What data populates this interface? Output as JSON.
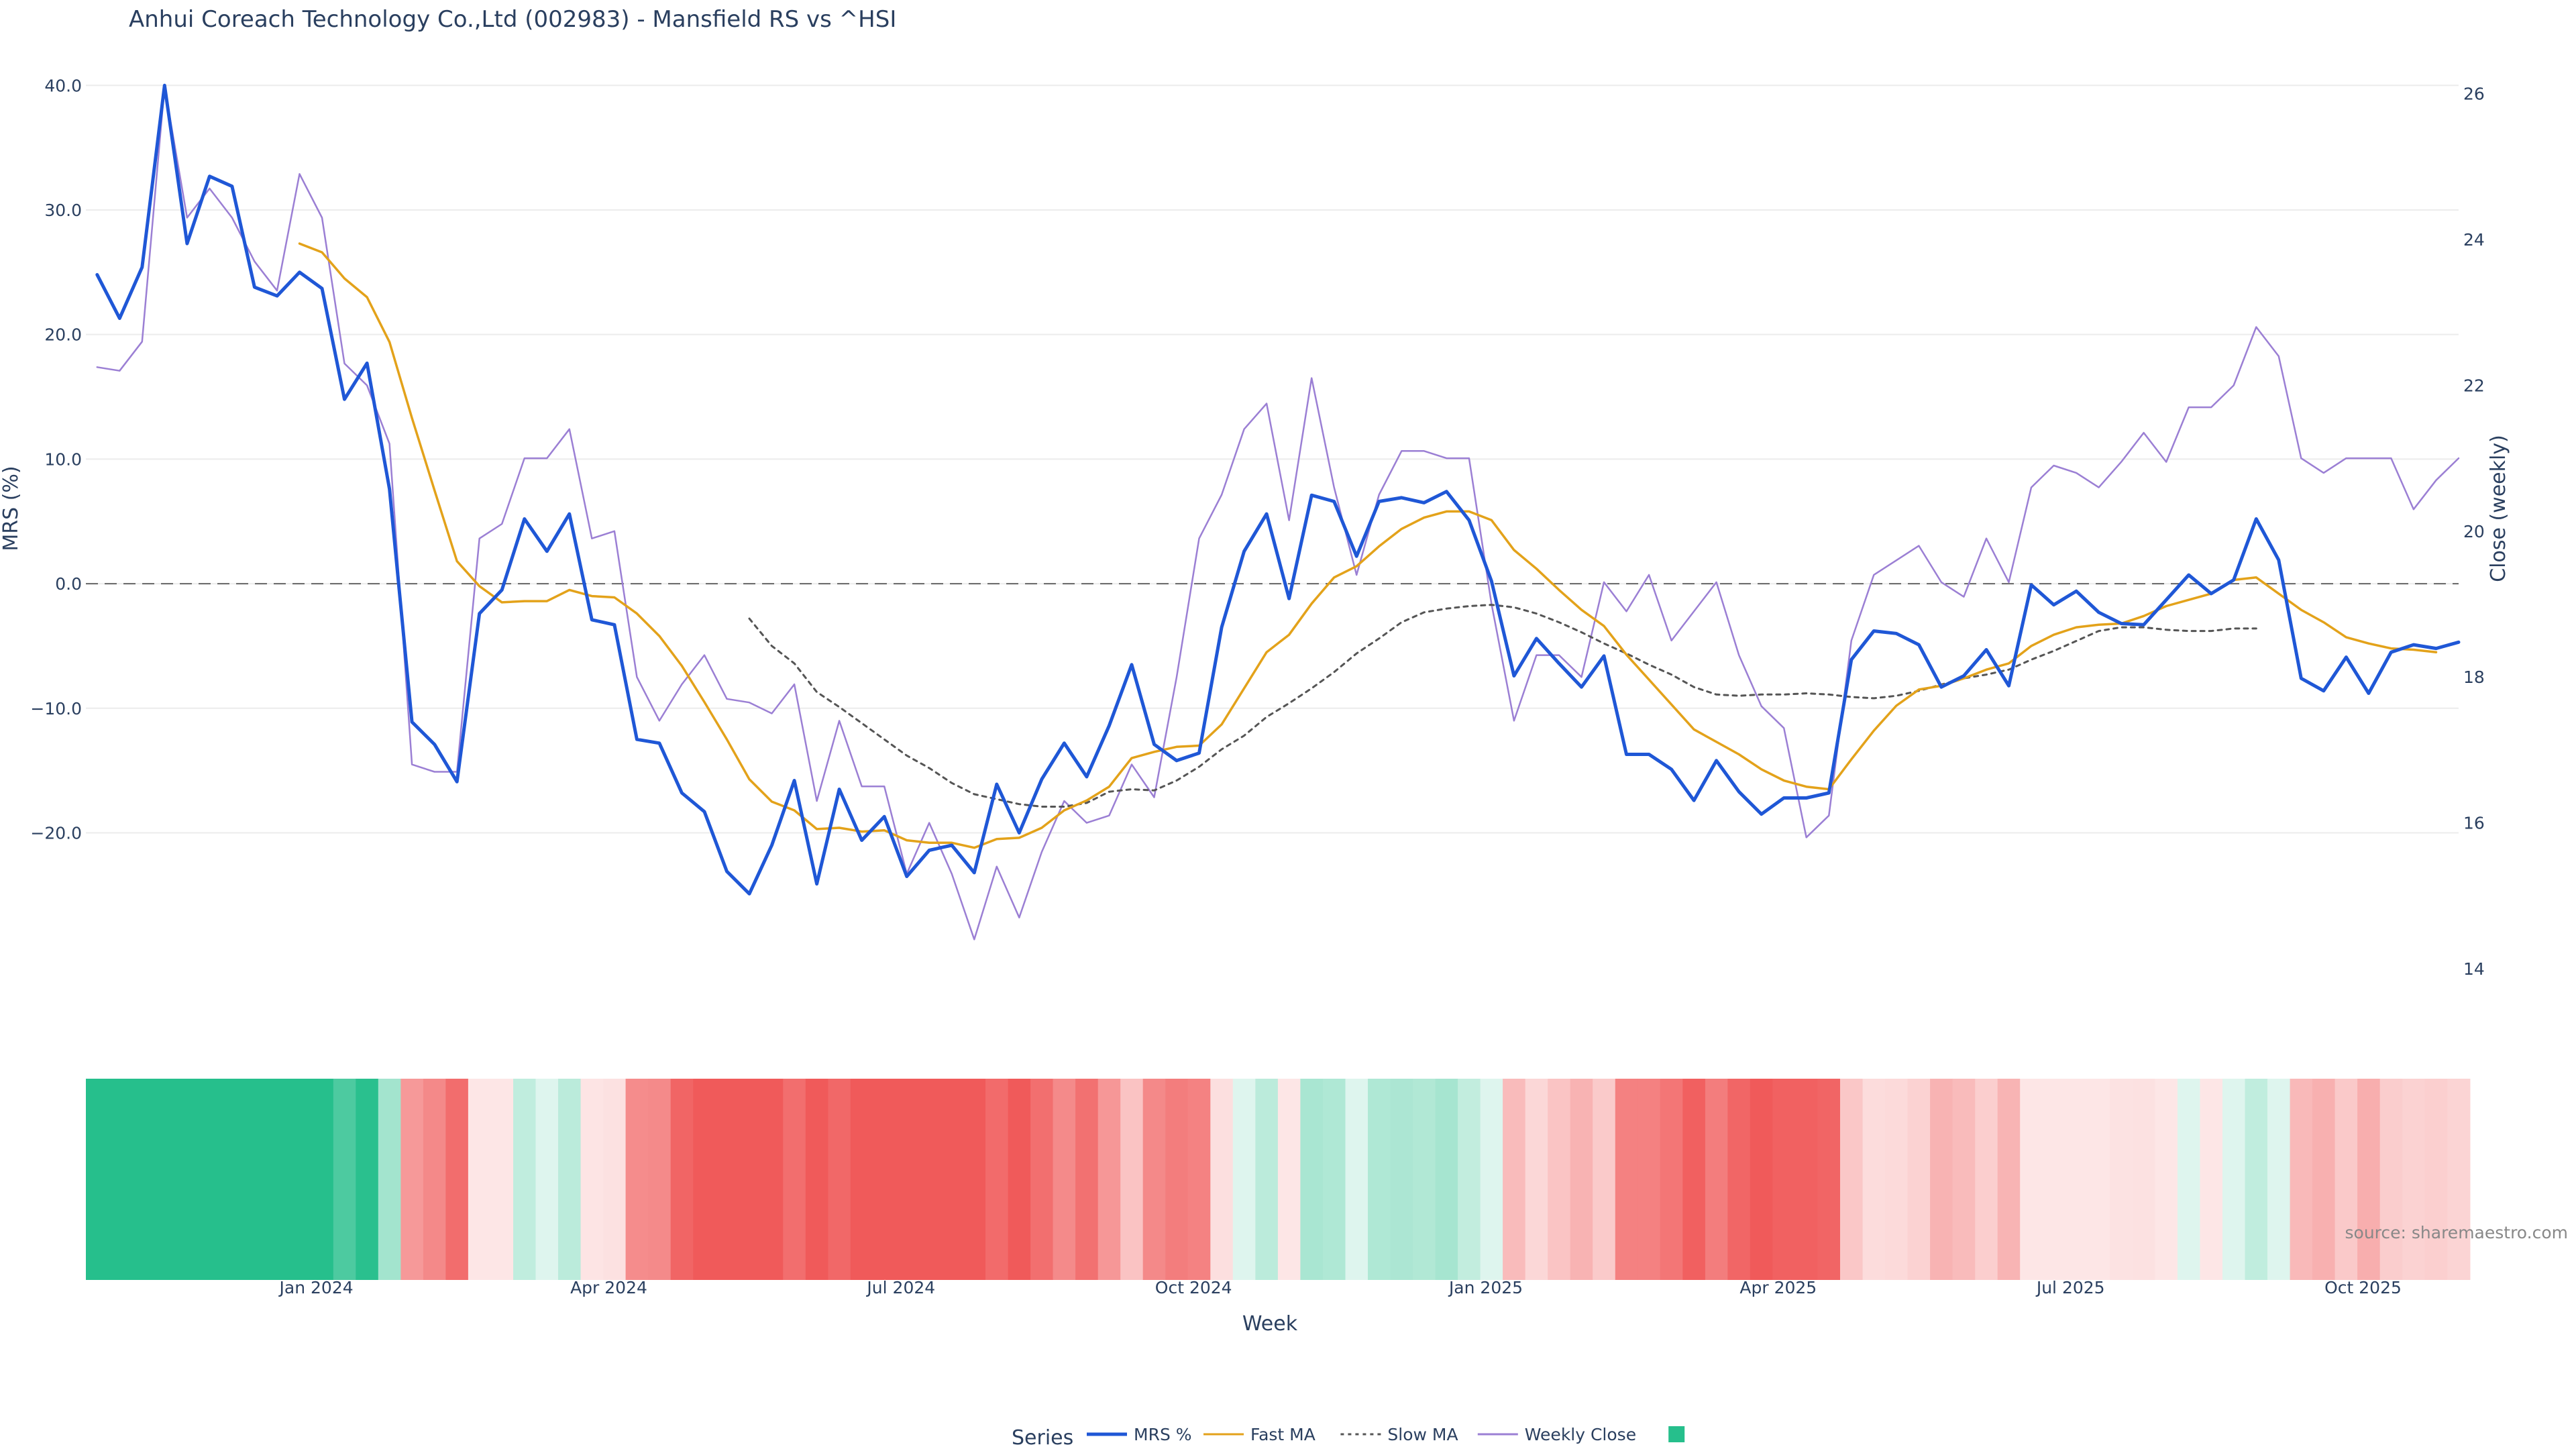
{
  "title": "Anhui Coreach Technology Co.,Ltd (002983) - Mansfield RS vs ^HSI",
  "source_note": "source: sharemaestro.com",
  "legend": {
    "title": "Series",
    "items": [
      {
        "label": "MRS %",
        "color": "#1f57d6",
        "dash": "solid"
      },
      {
        "label": "Fast MA",
        "color": "#e3a21a",
        "dash": "solid"
      },
      {
        "label": "Slow MA",
        "color": "#555555",
        "dash": "dot"
      },
      {
        "label": "Weekly Close",
        "color": "#9b7fd4",
        "dash": "solid"
      },
      {
        "label": "",
        "color": "#26bf8c",
        "dash": "swatch"
      }
    ]
  },
  "chart_data": {
    "type": "line",
    "x_axis": {
      "title": "Week",
      "ticks": [
        "Jan 2024",
        "Apr 2024",
        "Jul 2024",
        "Oct 2024",
        "Jan 2025",
        "Apr 2025",
        "Jul 2025",
        "Oct 2025"
      ],
      "tick_weeks": [
        9.75,
        22.75,
        35.75,
        48.75,
        61.75,
        74.75,
        87.75,
        100.75
      ],
      "first_week_label": "week index 0 ≈ 2023-10-30",
      "range_weeks": [
        -0.5,
        105
      ]
    },
    "y_axis_left": {
      "title": "MRS (%)",
      "ticks": [
        "40.0",
        "30.0",
        "20.0",
        "10.0",
        "0.0",
        "−10.0",
        "−20.0"
      ],
      "tick_values": [
        40,
        30,
        20,
        10,
        0,
        -10,
        -20
      ],
      "range": [
        -35,
        40.5
      ]
    },
    "y_axis_right": {
      "title": "Close (weekly)",
      "ticks": [
        "26",
        "24",
        "22",
        "20",
        "18",
        "16",
        "14"
      ],
      "tick_values": [
        26,
        24,
        22,
        20,
        18,
        16,
        14
      ],
      "range": [
        13.3,
        26.2
      ]
    },
    "zero_line": 0,
    "grid": true,
    "series": [
      {
        "name": "MRS %",
        "axis": "left",
        "color": "#1f57d6",
        "start_week": 0,
        "values": [
          24.8,
          21.3,
          25.4,
          40.0,
          27.3,
          32.7,
          31.9,
          23.8,
          23.1,
          25.0,
          23.7,
          14.8,
          17.7,
          7.6,
          -11.1,
          -12.9,
          -15.9,
          -2.4,
          -0.5,
          5.2,
          2.6,
          5.6,
          -2.9,
          -3.3,
          -12.5,
          -12.8,
          -16.8,
          -18.3,
          -23.1,
          -24.9,
          -21.0,
          -15.8,
          -24.1,
          -16.5,
          -20.6,
          -18.7,
          -23.5,
          -21.4,
          -21.0,
          -23.2,
          -16.1,
          -20.0,
          -15.7,
          -12.8,
          -15.5,
          -11.4,
          -6.5,
          -12.9,
          -14.2,
          -13.6,
          -3.5,
          2.6,
          5.6,
          -1.2,
          7.1,
          6.6,
          2.2,
          6.6,
          6.9,
          6.5,
          7.4,
          5.1,
          0.2,
          -7.4,
          -4.4,
          -6.4,
          -8.3,
          -5.8,
          -13.7,
          -13.7,
          -14.9,
          -17.4,
          -14.2,
          -16.7,
          -18.5,
          -17.2,
          -17.2,
          -16.8,
          -6.1,
          -3.8,
          -4.0,
          -4.9,
          -8.3,
          -7.4,
          -5.3,
          -8.2,
          -0.1,
          -1.7,
          -0.6,
          -2.3,
          -3.2,
          -3.3,
          -1.3,
          0.7,
          -0.8,
          0.3,
          5.2,
          1.9,
          -7.6,
          -8.6,
          -5.9,
          -8.8,
          -5.5,
          -4.9,
          -5.2,
          -4.7
        ]
      },
      {
        "name": "Fast MA",
        "axis": "left",
        "color": "#e3a21a",
        "start_week": 9,
        "values": [
          27.3,
          26.6,
          24.5,
          23.0,
          19.4,
          13.3,
          7.5,
          1.8,
          -0.2,
          -1.5,
          -1.4,
          -1.4,
          -0.5,
          -1.0,
          -1.1,
          -2.4,
          -4.2,
          -6.6,
          -9.5,
          -12.5,
          -15.7,
          -17.5,
          -18.2,
          -19.7,
          -19.6,
          -19.9,
          -19.8,
          -20.6,
          -20.8,
          -20.8,
          -21.2,
          -20.5,
          -20.4,
          -19.6,
          -18.2,
          -17.4,
          -16.3,
          -14.0,
          -13.5,
          -13.1,
          -13.0,
          -11.3,
          -8.4,
          -5.5,
          -4.1,
          -1.6,
          0.5,
          1.4,
          3.0,
          4.4,
          5.3,
          5.8,
          5.8,
          5.1,
          2.7,
          1.2,
          -0.5,
          -2.1,
          -3.4,
          -5.7,
          -7.7,
          -9.7,
          -11.7,
          -12.7,
          -13.7,
          -14.9,
          -15.8,
          -16.3,
          -16.5,
          -14.1,
          -11.8,
          -9.8,
          -8.5,
          -8.2,
          -7.6,
          -6.9,
          -6.4,
          -5.0,
          -4.1,
          -3.5,
          -3.3,
          -3.2,
          -2.6,
          -1.8,
          -1.3,
          -0.8,
          0.3,
          0.5,
          -0.8,
          -2.1,
          -3.1,
          -4.3,
          -4.8,
          -5.2,
          -5.3,
          -5.5
        ]
      },
      {
        "name": "Slow MA",
        "axis": "left",
        "color": "#555555",
        "start_week": 29,
        "values": [
          -2.8,
          -5.0,
          -6.4,
          -8.7,
          -9.9,
          -11.2,
          -12.5,
          -13.8,
          -14.8,
          -16.0,
          -16.9,
          -17.3,
          -17.7,
          -17.9,
          -17.9,
          -17.6,
          -16.7,
          -16.5,
          -16.6,
          -15.8,
          -14.7,
          -13.3,
          -12.2,
          -10.7,
          -9.6,
          -8.4,
          -7.1,
          -5.6,
          -4.4,
          -3.1,
          -2.3,
          -2.0,
          -1.8,
          -1.7,
          -1.9,
          -2.4,
          -3.1,
          -3.9,
          -4.8,
          -5.6,
          -6.5,
          -7.3,
          -8.3,
          -8.9,
          -9.0,
          -8.9,
          -8.9,
          -8.8,
          -8.9,
          -9.1,
          -9.2,
          -9.0,
          -8.6,
          -8.1,
          -7.6,
          -7.3,
          -6.9,
          -6.1,
          -5.4,
          -4.6,
          -3.8,
          -3.5,
          -3.5,
          -3.7,
          -3.8,
          -3.8,
          -3.6,
          -3.6
        ]
      },
      {
        "name": "Weekly Close",
        "axis": "right",
        "color": "#9b7fd4",
        "start_week": 0,
        "values": [
          22.25,
          22.2,
          22.6,
          26.1,
          24.3,
          24.7,
          24.3,
          23.7,
          23.3,
          24.9,
          24.3,
          22.3,
          22.0,
          21.2,
          16.8,
          16.7,
          16.7,
          19.9,
          20.1,
          21.0,
          21.0,
          21.4,
          19.9,
          20.0,
          18.0,
          17.4,
          17.9,
          18.3,
          17.7,
          17.65,
          17.5,
          17.9,
          16.3,
          17.4,
          16.5,
          16.5,
          15.3,
          16.0,
          15.3,
          14.4,
          15.4,
          14.7,
          15.6,
          16.3,
          16.0,
          16.1,
          16.8,
          16.35,
          18.0,
          19.9,
          20.5,
          21.4,
          21.75,
          20.15,
          22.1,
          20.6,
          19.4,
          20.5,
          21.1,
          21.1,
          21.0,
          21.0,
          19.0,
          17.4,
          18.3,
          18.3,
          18.0,
          19.3,
          18.9,
          19.4,
          18.5,
          18.9,
          19.3,
          18.3,
          17.6,
          17.3,
          15.8,
          16.1,
          18.5,
          19.4,
          19.6,
          19.8,
          19.3,
          19.1,
          19.9,
          19.3,
          20.6,
          20.9,
          20.8,
          20.6,
          20.95,
          21.35,
          20.95,
          21.7,
          21.7,
          22.0,
          22.8,
          22.4,
          21.0,
          20.8,
          21.0,
          21.0,
          21.0,
          20.3,
          20.7,
          21.0
        ]
      }
    ],
    "heatmap_strip": {
      "type": "heatmap",
      "description_source": "MRS % per week",
      "positive_color": "#26bf8c",
      "negative_color": "#f05a5a"
    }
  }
}
